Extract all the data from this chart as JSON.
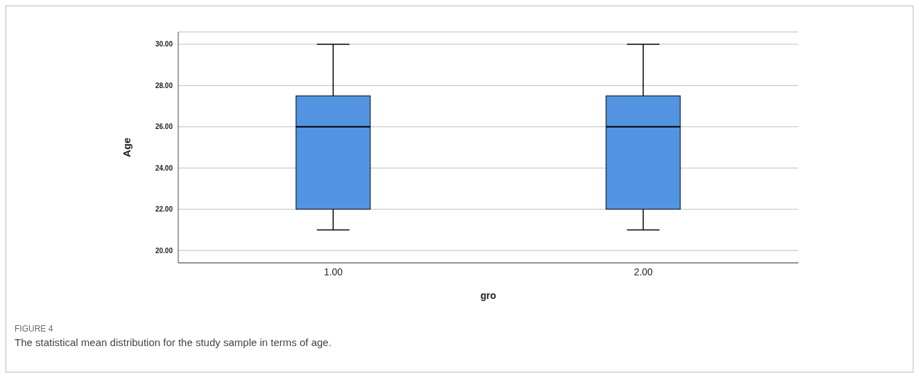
{
  "chart_data": {
    "type": "box",
    "xlabel": "gro",
    "ylabel": "Age",
    "categories": [
      "1.00",
      "2.00"
    ],
    "boxes": [
      {
        "low": 21,
        "q1": 22,
        "median": 26,
        "q3": 27.5,
        "high": 30
      },
      {
        "low": 21,
        "q1": 22,
        "median": 26,
        "q3": 27.5,
        "high": 30
      }
    ],
    "color": "#5294e2",
    "ylim": [
      19.4,
      30.6
    ],
    "yticks": [
      {
        "value": 20,
        "label": "20.00"
      },
      {
        "value": 22,
        "label": "22.00"
      },
      {
        "value": 24,
        "label": "24.00"
      },
      {
        "value": 26,
        "label": "26.00"
      },
      {
        "value": 28,
        "label": "28.00"
      },
      {
        "value": 30,
        "label": "30.00"
      }
    ],
    "grid": "y",
    "annotations": [
      "FIGURE 4",
      "The statistical mean distribution for the study sample in terms of age."
    ]
  }
}
